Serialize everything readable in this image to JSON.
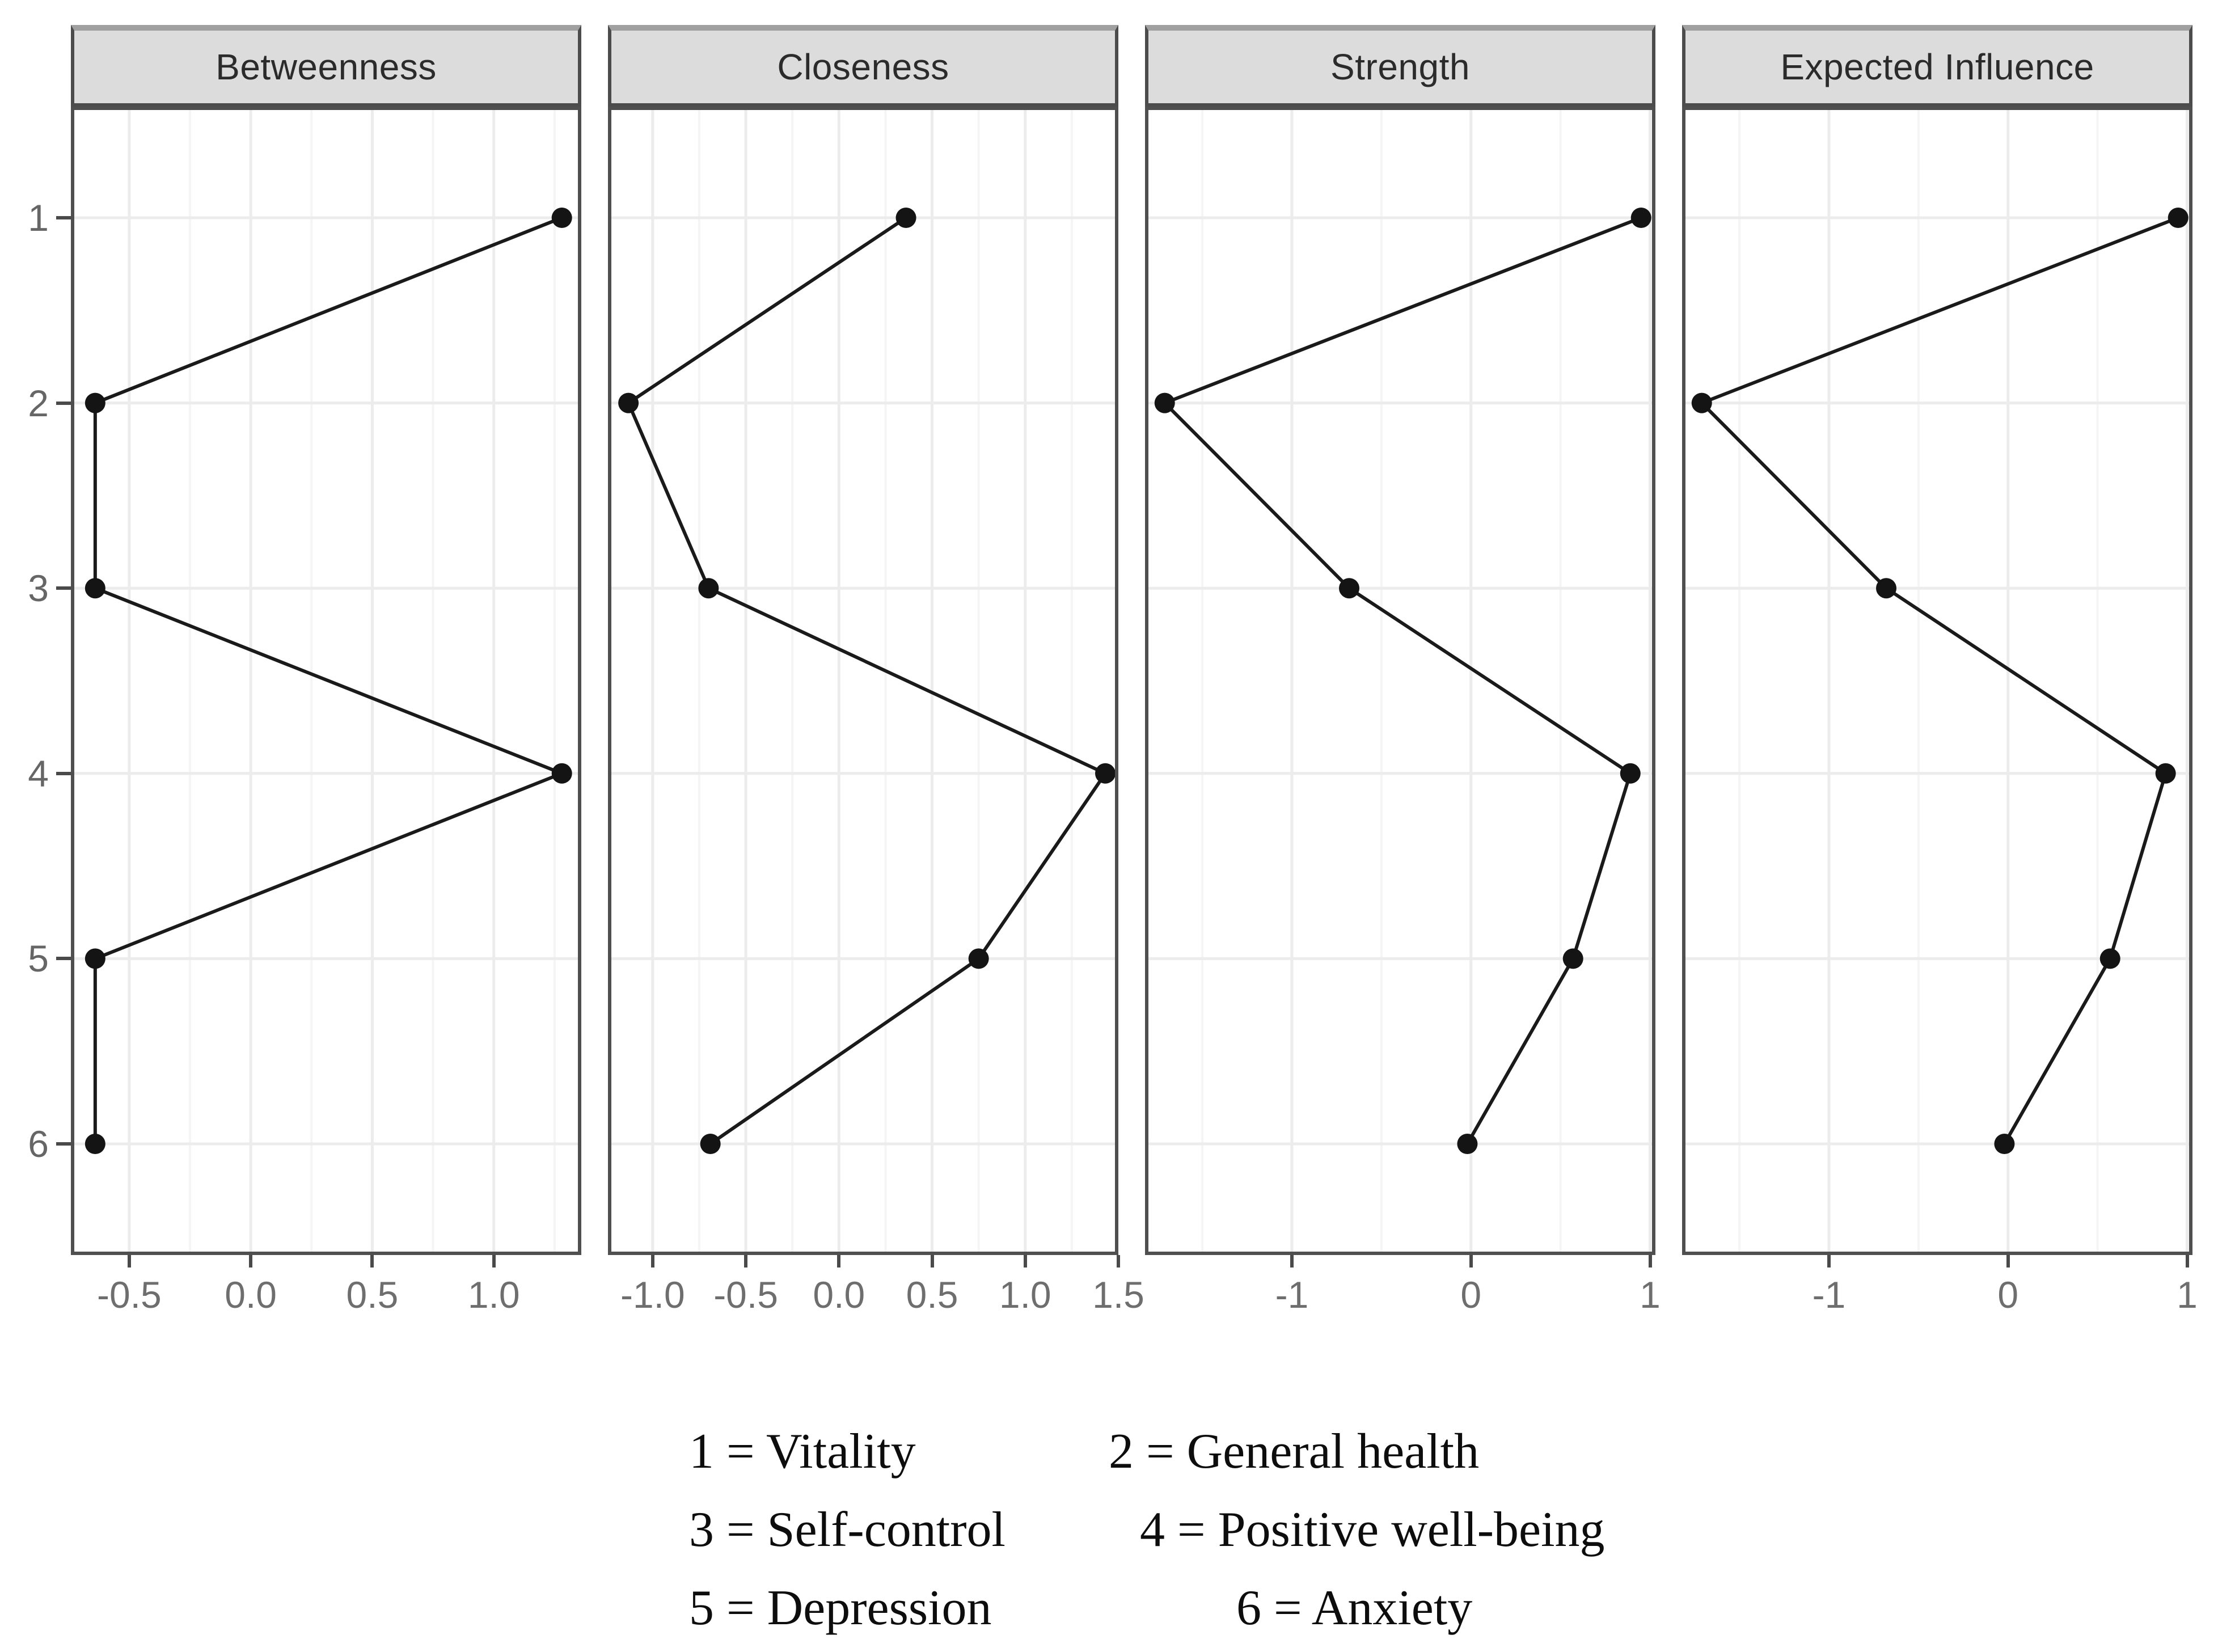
{
  "chart_data": {
    "type": "line",
    "title": "",
    "description": "Faceted standardized node centrality profile plot; one line per panel connecting nodes 1-6 (top to bottom) at their z-score values",
    "categories": [
      "1",
      "2",
      "3",
      "4",
      "5",
      "6"
    ],
    "grid": {
      "major": true,
      "minor": true
    },
    "legend_position": "bottom",
    "line_color": "#1a1a1a",
    "point_color": "#141414",
    "panels": [
      {
        "title": "Betweenness",
        "xtick_labels": [
          "-0.5",
          "0.0",
          "0.5",
          "1.0"
        ],
        "xtick_values": [
          -0.5,
          0.0,
          0.5,
          1.0
        ],
        "xlim": [
          -0.74,
          1.36
        ],
        "values": [
          1.28,
          -0.64,
          -0.64,
          1.28,
          -0.64,
          -0.64
        ]
      },
      {
        "title": "Closeness",
        "xtick_labels": [
          "-1.0",
          "-0.5",
          "0.0",
          "0.5",
          "1.0",
          "1.5"
        ],
        "xtick_values": [
          -1.0,
          -0.5,
          0.0,
          0.5,
          1.0,
          1.5
        ],
        "xlim": [
          -1.24,
          1.5
        ],
        "values": [
          0.36,
          -1.13,
          -0.7,
          1.43,
          0.75,
          -0.69
        ]
      },
      {
        "title": "Strength",
        "xtick_labels": [
          "-1",
          "0",
          "1"
        ],
        "xtick_values": [
          -1,
          0,
          1
        ],
        "xlim": [
          -1.82,
          1.03
        ],
        "values": [
          0.95,
          -1.71,
          -0.68,
          0.89,
          0.57,
          -0.02
        ]
      },
      {
        "title": "Expected Influence",
        "xtick_labels": [
          "-1",
          "0",
          "1"
        ],
        "xtick_values": [
          -1,
          0,
          1
        ],
        "xlim": [
          -1.82,
          1.03
        ],
        "values": [
          0.95,
          -1.71,
          -0.68,
          0.88,
          0.57,
          -0.02
        ]
      }
    ]
  },
  "legend": {
    "items": [
      {
        "text": "1 = Vitality"
      },
      {
        "text": "2 = General health"
      },
      {
        "text": "3 = Self-control"
      },
      {
        "text": "4 = Positive well-being"
      },
      {
        "text": "5 = Depression"
      },
      {
        "text": "6 = Anxiety"
      }
    ]
  },
  "colors": {
    "strip_fill": "#dcdcdc",
    "strip_border": "#4c4c4c",
    "panel_border": "#4f4f4f",
    "grid_major": "#ececec",
    "grid_minor": "#f5f5f5",
    "tick_mark": "#4a4a4a",
    "tick_label": "#6e6e6e",
    "strip_text": "#2b2b2b"
  }
}
